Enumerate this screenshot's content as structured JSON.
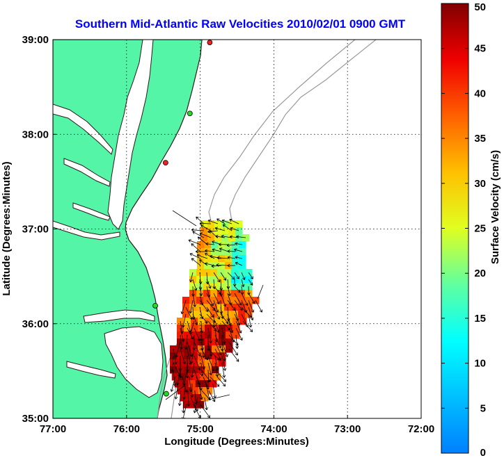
{
  "title": "Southern Mid-Atlantic Raw Velocities 2010/02/01 0900 GMT",
  "xlabel": "Longitude (Degrees:Minutes)",
  "ylabel": "Latitude (Degrees:Minutes)",
  "colorbar_label": "Surface Velocity (cm/s)",
  "x_ticks": [
    "77:00",
    "76:00",
    "75:00",
    "74:00",
    "73:00",
    "72:00"
  ],
  "y_ticks": [
    "39:00",
    "38:00",
    "37:00",
    "36:00",
    "35:00"
  ],
  "colorbar_ticks": [
    "0",
    "5",
    "10",
    "15",
    "20",
    "25",
    "30",
    "35",
    "40",
    "45",
    "50"
  ],
  "colors": {
    "land": "#55f5a8",
    "coast": "#2b1a1a",
    "bathymetry": "#9a9a9a",
    "title": "#0000ff",
    "station_active": "#22dd22",
    "station_inactive": "#ee2222"
  },
  "chart_data": {
    "type": "map",
    "xlim": [
      -77,
      -72
    ],
    "ylim": [
      35,
      39
    ],
    "grid": true,
    "colormap": "jet",
    "clim": [
      0,
      50
    ],
    "stations": [
      {
        "lon": -74.87,
        "lat": 38.97,
        "status": "inactive"
      },
      {
        "lon": -75.14,
        "lat": 38.22,
        "status": "active"
      },
      {
        "lon": -75.47,
        "lat": 37.7,
        "status": "inactive"
      },
      {
        "lon": -75.61,
        "lat": 36.19,
        "status": "active"
      },
      {
        "lon": -75.46,
        "lat": 35.26,
        "status": "active"
      }
    ]
  }
}
